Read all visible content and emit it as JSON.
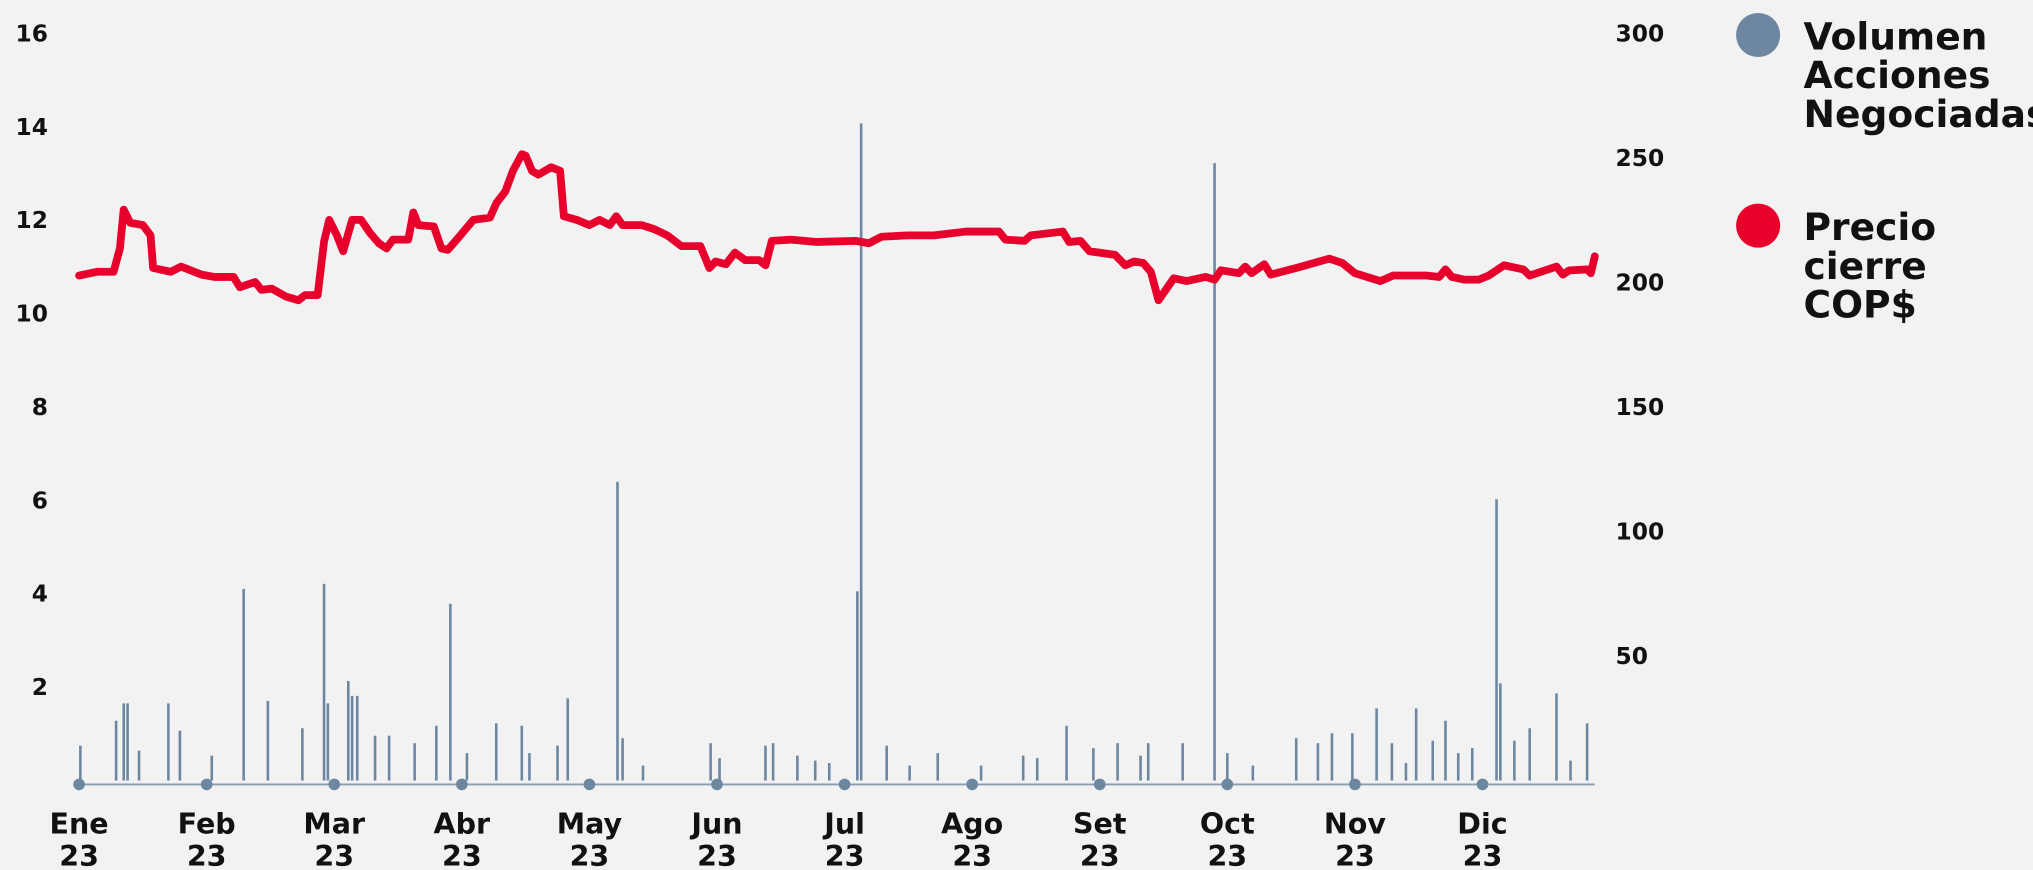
{
  "chart_data": {
    "type": "line",
    "xlim": [
      0,
      11.88
    ],
    "xticks": [
      {
        "value": 0,
        "label": "Ene 23"
      },
      {
        "value": 1,
        "label": "Feb 23"
      },
      {
        "value": 2,
        "label": "Mar 23"
      },
      {
        "value": 3,
        "label": "Abr 23"
      },
      {
        "value": 4,
        "label": "May 23"
      },
      {
        "value": 5,
        "label": "Jun 23"
      },
      {
        "value": 6,
        "label": "Jul 23"
      },
      {
        "value": 7,
        "label": "Ago 23"
      },
      {
        "value": 8,
        "label": "Set 23"
      },
      {
        "value": 9,
        "label": "Oct 23"
      },
      {
        "value": 10,
        "label": "Nov 23"
      },
      {
        "value": 11,
        "label": "Dic 23"
      }
    ],
    "ylim": [
      0,
      16
    ],
    "yticks": [
      2,
      4,
      6,
      8,
      10,
      12,
      14,
      16
    ],
    "y2lim": [
      0,
      300
    ],
    "y2ticks": [
      50,
      100,
      150,
      200,
      250,
      300
    ],
    "legend": "right",
    "series": [
      {
        "name": "Volumen Acciones Negociadas",
        "type": "bar",
        "axis": "y2",
        "color": "#6e87a1",
        "x": [
          0.01,
          0.29,
          0.35,
          0.38,
          0.47,
          0.7,
          0.79,
          1.04,
          1.29,
          1.48,
          1.75,
          1.92,
          1.95,
          2.11,
          2.14,
          2.18,
          2.32,
          2.43,
          2.63,
          2.8,
          2.91,
          3.04,
          3.27,
          3.47,
          3.53,
          3.75,
          3.83,
          4.22,
          4.26,
          4.42,
          4.95,
          5.02,
          5.38,
          5.44,
          5.63,
          5.77,
          5.88,
          6.1,
          6.13,
          6.33,
          6.51,
          6.73,
          7.07,
          7.4,
          7.51,
          7.74,
          7.95,
          8.14,
          8.32,
          8.38,
          8.65,
          8.9,
          9.0,
          9.2,
          9.54,
          9.71,
          9.82,
          9.98,
          10.17,
          10.29,
          10.4,
          10.48,
          10.61,
          10.71,
          10.81,
          10.92,
          11.11,
          11.14,
          11.25,
          11.37,
          11.58,
          11.69,
          11.82
        ],
        "values": [
          14,
          24,
          31,
          31,
          12,
          31,
          20,
          10,
          77,
          32,
          21,
          79,
          31,
          40,
          34,
          34,
          18,
          18,
          15,
          22,
          71,
          11,
          23,
          22,
          11,
          14,
          33,
          120,
          17,
          6,
          15,
          9,
          14,
          15,
          10,
          8,
          7,
          76,
          264,
          14,
          6,
          11,
          6,
          10,
          9,
          22,
          13,
          15,
          10,
          15,
          15,
          248,
          11,
          6,
          17,
          15,
          19,
          19,
          29,
          15,
          7,
          29,
          16,
          24,
          11,
          13,
          113,
          39,
          16,
          21,
          35,
          8,
          23
        ]
      },
      {
        "name": "Precio cierre COP$",
        "type": "line",
        "color": "#e8002d",
        "x": [
          0.0,
          0.14,
          0.27,
          0.32,
          0.35,
          0.4,
          0.5,
          0.56,
          0.58,
          0.72,
          0.8,
          0.96,
          1.06,
          1.21,
          1.26,
          1.38,
          1.43,
          1.51,
          1.62,
          1.72,
          1.77,
          1.87,
          1.92,
          1.96,
          2.02,
          2.07,
          2.14,
          2.21,
          2.28,
          2.35,
          2.41,
          2.46,
          2.58,
          2.62,
          2.66,
          2.78,
          2.84,
          2.89,
          2.96,
          3.09,
          3.22,
          3.27,
          3.34,
          3.4,
          3.47,
          3.5,
          3.55,
          3.6,
          3.7,
          3.77,
          3.8,
          3.9,
          4.0,
          4.08,
          4.16,
          4.21,
          4.26,
          4.41,
          4.51,
          4.61,
          4.72,
          4.87,
          4.94,
          4.99,
          5.07,
          5.14,
          5.22,
          5.33,
          5.38,
          5.43,
          5.58,
          5.78,
          6.09,
          6.19,
          6.29,
          6.49,
          6.7,
          6.95,
          7.21,
          7.26,
          7.41,
          7.46,
          7.71,
          7.76,
          7.85,
          7.92,
          8.12,
          8.2,
          8.27,
          8.34,
          8.4,
          8.46,
          8.58,
          8.68,
          8.83,
          8.9,
          8.95,
          9.09,
          9.14,
          9.19,
          9.29,
          9.34,
          9.54,
          9.8,
          9.9,
          10.0,
          10.2,
          10.3,
          10.56,
          10.66,
          10.71,
          10.76,
          10.86,
          10.97,
          11.05,
          11.17,
          11.32,
          11.37,
          11.58,
          11.63,
          11.68,
          11.82,
          11.85,
          11.88
        ],
        "values": [
          10.82,
          10.9,
          10.9,
          11.4,
          12.23,
          11.95,
          11.9,
          11.68,
          10.98,
          10.9,
          11.01,
          10.84,
          10.79,
          10.79,
          10.57,
          10.68,
          10.51,
          10.54,
          10.37,
          10.29,
          10.4,
          10.4,
          11.54,
          12.01,
          11.68,
          11.34,
          12.01,
          12.01,
          11.73,
          11.51,
          11.4,
          11.59,
          11.59,
          12.17,
          11.9,
          11.87,
          11.4,
          11.37,
          11.59,
          12.01,
          12.06,
          12.37,
          12.62,
          13.06,
          13.42,
          13.39,
          13.06,
          12.98,
          13.14,
          13.06,
          12.09,
          12.01,
          11.9,
          12.01,
          11.9,
          12.09,
          11.9,
          11.9,
          11.81,
          11.68,
          11.45,
          11.45,
          10.98,
          11.12,
          11.06,
          11.31,
          11.15,
          11.15,
          11.04,
          11.56,
          11.59,
          11.54,
          11.56,
          11.51,
          11.65,
          11.68,
          11.68,
          11.76,
          11.76,
          11.59,
          11.56,
          11.68,
          11.76,
          11.54,
          11.56,
          11.34,
          11.26,
          11.04,
          11.12,
          11.09,
          10.9,
          10.29,
          10.76,
          10.7,
          10.79,
          10.73,
          10.93,
          10.87,
          11.01,
          10.87,
          11.06,
          10.84,
          10.98,
          11.18,
          11.09,
          10.87,
          10.7,
          10.82,
          10.82,
          10.79,
          10.95,
          10.79,
          10.73,
          10.73,
          10.82,
          11.04,
          10.95,
          10.82,
          11.01,
          10.84,
          10.93,
          10.95,
          10.87,
          11.23
        ]
      }
    ]
  }
}
